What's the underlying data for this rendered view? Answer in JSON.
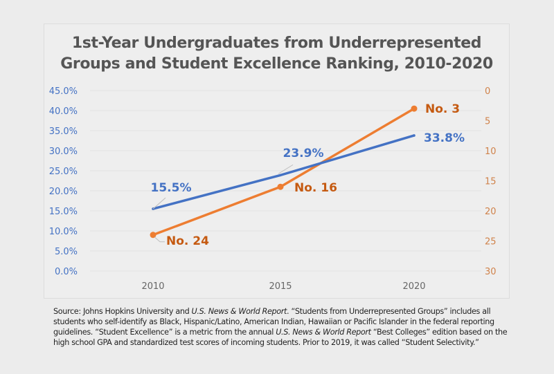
{
  "chart_data": {
    "type": "line",
    "title": "1st-Year Undergraduates from Underrepresented Groups and Student Excellence Ranking, 2010-2020",
    "title_lines": [
      "1st-Year Undergraduates from Underrepresented",
      "Groups and Student Excellence Ranking, 2010-2020"
    ],
    "x": [
      "2010",
      "2015",
      "2020"
    ],
    "left_axis": {
      "ylim": [
        0,
        45
      ],
      "ticks": [
        0,
        5,
        10,
        15,
        20,
        25,
        30,
        35,
        40,
        45
      ],
      "tick_labels": [
        "0.0%",
        "5.0%",
        "10.0%",
        "15.0%",
        "20.0%",
        "25.0%",
        "30.0%",
        "35.0%",
        "40.0%",
        "45.0%"
      ],
      "color": "#4472c4"
    },
    "right_axis": {
      "ylim": [
        0,
        30
      ],
      "inverted": true,
      "ticks": [
        0,
        5,
        10,
        15,
        20,
        25,
        30
      ],
      "tick_labels": [
        "0",
        "5",
        "10",
        "15",
        "20",
        "25",
        "30"
      ],
      "color": "#c55a11"
    },
    "series": [
      {
        "name": "1st-Year Undergraduates from Underrepresented Groups",
        "axis": "left",
        "values": [
          15.5,
          23.9,
          33.8
        ],
        "labels": [
          "15.5%",
          "23.9%",
          "33.8%"
        ],
        "color": "#4472c4"
      },
      {
        "name": "Student Excellence Ranking",
        "axis": "right",
        "values": [
          24,
          16,
          3
        ],
        "labels": [
          "No. 24",
          "No. 16",
          "No. 3"
        ],
        "color": "#ed7d31",
        "label_color": "#c55a11"
      }
    ],
    "grid": true,
    "legend": "none",
    "xlabel": "",
    "ylabel": ""
  },
  "source": {
    "parts": [
      {
        "text": "Source: Johns Hopkins University and ",
        "italic": false
      },
      {
        "text": "U.S. News & World Report",
        "italic": true
      },
      {
        "text": ". “Students from Underrepresented Groups” includes all students who self-identify as Black, Hispanic/Latino, American Indian, Hawaiian or Pacific Islander in the federal reporting guidelines. “Student Excellence” is a metric from the annual ",
        "italic": false
      },
      {
        "text": "U.S. News & World Report",
        "italic": true
      },
      {
        "text": " “Best Colleges” edition based on the high school GPA and standardized test scores of incoming students. Prior to 2019, it was called “Student Selectivity.”",
        "italic": false
      }
    ]
  }
}
